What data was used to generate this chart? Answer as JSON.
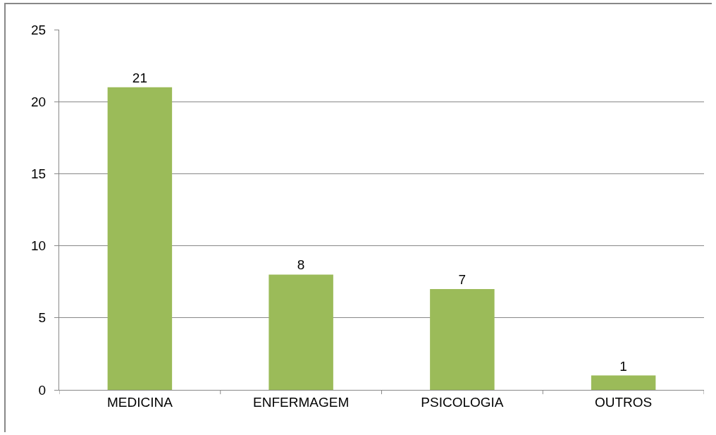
{
  "chart_data": {
    "type": "bar",
    "categories": [
      "MEDICINA",
      "ENFERMAGEM",
      "PSICOLOGIA",
      "OUTROS"
    ],
    "values": [
      21,
      8,
      7,
      1
    ],
    "color": "#9bbb59",
    "ylim": [
      0,
      25
    ],
    "yticks": [
      0,
      5,
      10,
      15,
      20,
      25
    ],
    "grid": "y",
    "data_labels": true,
    "legend": false
  }
}
